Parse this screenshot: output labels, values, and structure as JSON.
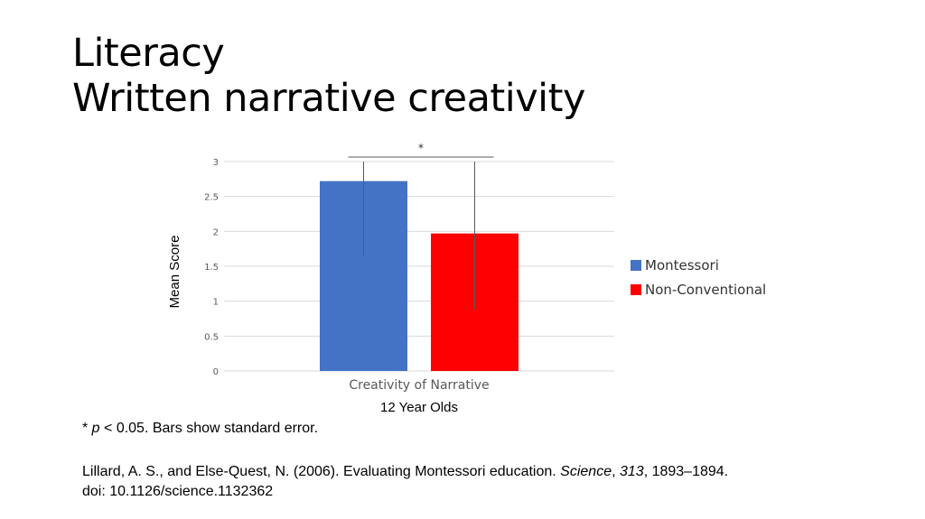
{
  "title": {
    "line1": "Literacy",
    "line2": "Written narrative creativity"
  },
  "footnote": {
    "star": "* ",
    "p": "p",
    "rest": " < 0.05. Bars show standard error."
  },
  "citation": {
    "part1": "Lillard, A. S., and Else-Quest, N. (2006). Evaluating Montessori education. ",
    "journal": "Science",
    "part2": ", ",
    "volume": "313",
    "part3": ", 1893–1894.",
    "doi": "doi: 10.1126/science.1132362"
  },
  "chart_data": {
    "type": "bar",
    "categories": [
      "Creativity of Narrative"
    ],
    "xlabel": "12 Year Olds",
    "ylabel": "Mean Score",
    "ylim": [
      0,
      3
    ],
    "yticks": [
      "0",
      "0.5",
      "1",
      "1.5",
      "2",
      "2.5",
      "3"
    ],
    "ytick_values": [
      0,
      0.5,
      1,
      1.5,
      2,
      2.5,
      3
    ],
    "grid": true,
    "legend_position": "right",
    "significance_marker": "*",
    "series": [
      {
        "name": "Montessori",
        "values": [
          2.72
        ],
        "error_low": [
          1.65
        ],
        "error_high": [
          3.0
        ],
        "color": "#4472C4"
      },
      {
        "name": "Non-Conventional",
        "values": [
          1.97
        ],
        "error_low": [
          0.88
        ],
        "error_high": [
          3.0
        ],
        "color": "#FF0000"
      }
    ]
  }
}
